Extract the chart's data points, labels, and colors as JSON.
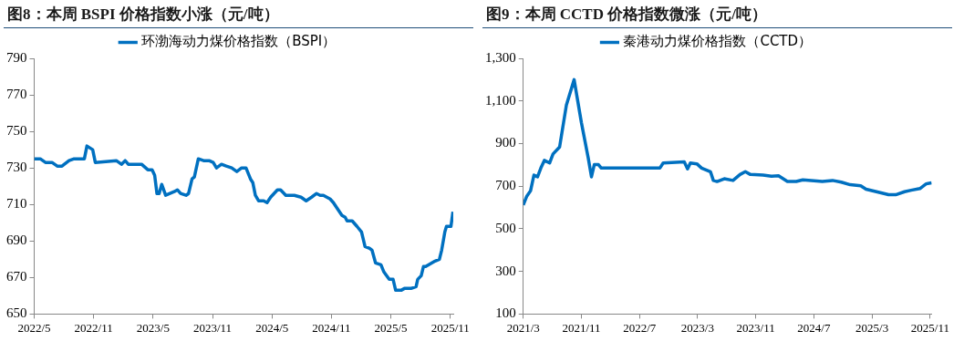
{
  "chart_data": [
    {
      "type": "line",
      "title": "图8：本周 BSPI 价格指数小涨（元/吨）",
      "legend": "top",
      "marker": "none",
      "grid": false,
      "xlim": [
        "2022-05",
        "2025-11-10"
      ],
      "xticks": [
        {
          "value": "2022-05",
          "label": "2022/5"
        },
        {
          "value": "2022-11",
          "label": "2022/11"
        },
        {
          "value": "2023-05",
          "label": "2023/5"
        },
        {
          "value": "2023-11",
          "label": "2023/11"
        },
        {
          "value": "2024-05",
          "label": "2024/5"
        },
        {
          "value": "2024-11",
          "label": "2024/11"
        },
        {
          "value": "2025-05",
          "label": "2025/5"
        },
        {
          "value": "2025-11",
          "label": "2025/11"
        }
      ],
      "ylim": [
        650,
        790
      ],
      "yticks": [
        650,
        670,
        690,
        710,
        730,
        750,
        770,
        790
      ],
      "series": [
        {
          "name": "环渤海动力煤价格指数（BSPI）",
          "color": "#0070c0",
          "x": [
            "2022-05-01",
            "2022-05-20",
            "2022-06-05",
            "2022-06-25",
            "2022-07-11",
            "2022-07-26",
            "2022-08-17",
            "2022-09-02",
            "2022-10-03",
            "2022-10-11",
            "2022-10-29",
            "2022-11-06",
            "2023-01-10",
            "2023-01-26",
            "2023-02-06",
            "2023-02-15",
            "2023-03-27",
            "2023-04-15",
            "2023-04-28",
            "2023-05-06",
            "2023-05-13",
            "2023-05-20",
            "2023-05-28",
            "2023-06-09",
            "2023-07-05",
            "2023-07-15",
            "2023-07-25",
            "2023-08-11",
            "2023-08-19",
            "2023-08-30",
            "2023-09-06",
            "2023-09-18",
            "2023-10-04",
            "2023-10-21",
            "2023-11-03",
            "2023-11-13",
            "2023-11-28",
            "2023-12-13",
            "2023-12-30",
            "2024-01-15",
            "2024-01-30",
            "2024-02-12",
            "2024-02-25",
            "2024-03-03",
            "2024-03-11",
            "2024-03-21",
            "2024-04-06",
            "2024-04-16",
            "2024-04-27",
            "2024-05-18",
            "2024-05-28",
            "2024-06-13",
            "2024-07-09",
            "2024-07-30",
            "2024-08-15",
            "2024-09-01",
            "2024-09-16",
            "2024-09-27",
            "2024-10-07",
            "2024-10-28",
            "2024-11-07",
            "2024-11-18",
            "2024-12-03",
            "2024-12-13",
            "2024-12-19",
            "2025-01-04",
            "2025-01-19",
            "2025-02-02",
            "2025-02-12",
            "2025-02-25",
            "2025-03-04",
            "2025-03-15",
            "2025-04-01",
            "2025-04-10",
            "2025-04-26",
            "2025-05-08",
            "2025-05-16",
            "2025-06-02",
            "2025-06-12",
            "2025-07-02",
            "2025-07-18",
            "2025-07-23",
            "2025-08-03",
            "2025-08-10",
            "2025-08-17",
            "2025-09-15",
            "2025-09-28",
            "2025-10-05",
            "2025-10-15",
            "2025-10-20",
            "2025-11-03",
            "2025-11-09"
          ],
          "values": [
            735,
            735,
            733,
            733,
            731,
            731,
            734,
            735,
            735,
            742,
            740,
            733,
            734,
            732,
            734,
            732,
            732,
            729,
            729,
            726,
            716,
            716,
            721,
            715,
            717,
            718,
            716,
            715,
            716,
            724,
            725,
            735,
            734,
            734,
            733,
            730,
            732,
            731,
            730,
            728,
            730,
            730,
            724,
            722,
            715,
            712,
            712,
            711,
            714,
            718,
            718,
            715,
            715,
            714,
            712,
            714,
            716,
            715,
            715,
            713,
            711,
            708,
            704,
            703,
            701,
            701,
            698,
            695,
            687,
            686,
            685,
            678,
            677,
            673,
            669,
            669,
            663,
            663,
            664,
            664,
            665,
            669,
            671,
            676,
            676,
            679,
            680,
            685,
            695,
            698,
            698,
            706
          ]
        }
      ]
    },
    {
      "type": "line",
      "title": "图9：本周 CCTD 价格指数微涨（元/吨）",
      "legend": "top",
      "marker": "none",
      "grid": false,
      "xlim": [
        "2021-03",
        "2025-11-08"
      ],
      "xticks": [
        {
          "value": "2021-03",
          "label": "2021/3"
        },
        {
          "value": "2021-11",
          "label": "2021/11"
        },
        {
          "value": "2022-07",
          "label": "2022/7"
        },
        {
          "value": "2023-03",
          "label": "2023/3"
        },
        {
          "value": "2023-11",
          "label": "2023/11"
        },
        {
          "value": "2024-07",
          "label": "2024/7"
        },
        {
          "value": "2025-03",
          "label": "2025/3"
        },
        {
          "value": "2025-11",
          "label": "2025/11"
        }
      ],
      "ylim": [
        100,
        1300
      ],
      "yticks": [
        {
          "value": 100,
          "label": "100"
        },
        {
          "value": 300,
          "label": "300"
        },
        {
          "value": 500,
          "label": "500"
        },
        {
          "value": 700,
          "label": "700"
        },
        {
          "value": 900,
          "label": "900"
        },
        {
          "value": 1100,
          "label": "1,100"
        },
        {
          "value": 1300,
          "label": "1,300"
        }
      ],
      "series": [
        {
          "name": "秦港动力煤价格指数（CCTD）",
          "color": "#0070c0",
          "x": [
            "2021-03-01",
            "2021-03-16",
            "2021-04-01",
            "2021-04-15",
            "2021-04-30",
            "2021-05-14",
            "2021-05-29",
            "2021-06-20",
            "2021-07-04",
            "2021-08-01",
            "2021-08-30",
            "2021-10-01",
            "2021-11-01",
            "2021-11-29",
            "2021-12-13",
            "2021-12-25",
            "2022-01-12",
            "2022-01-24",
            "2022-09-25",
            "2022-10-09",
            "2023-01-06",
            "2023-01-20",
            "2023-02-01",
            "2023-02-26",
            "2023-03-18",
            "2023-04-24",
            "2023-05-06",
            "2023-05-22",
            "2023-06-21",
            "2023-07-28",
            "2023-08-27",
            "2023-09-18",
            "2023-10-09",
            "2023-12-01",
            "2024-01-06",
            "2024-02-05",
            "2024-03-12",
            "2024-04-18",
            "2024-05-16",
            "2024-08-06",
            "2024-09-18",
            "2024-10-25",
            "2024-12-01",
            "2025-01-15",
            "2025-02-06",
            "2025-03-20",
            "2025-05-10",
            "2025-06-09",
            "2025-07-16",
            "2025-08-13",
            "2025-09-19",
            "2025-10-15",
            "2025-11-07"
          ],
          "values": [
            612,
            653,
            678,
            752,
            744,
            785,
            821,
            809,
            851,
            884,
            1081,
            1200,
            999,
            834,
            744,
            801,
            801,
            785,
            785,
            809,
            814,
            781,
            809,
            805,
            785,
            768,
            727,
            722,
            735,
            727,
            755,
            768,
            755,
            752,
            747,
            749,
            722,
            722,
            730,
            722,
            727,
            719,
            707,
            702,
            686,
            674,
            660,
            660,
            674,
            681,
            689,
            711,
            716
          ]
        }
      ]
    }
  ]
}
